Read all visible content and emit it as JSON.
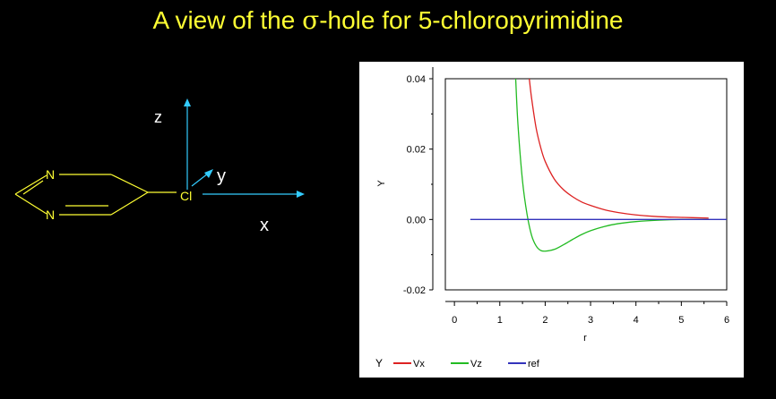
{
  "slide": {
    "title_prefix": "A view of the ",
    "title_sigma": "σ",
    "title_suffix": "-hole for 5-chloropyrimidine"
  },
  "molecule": {
    "atom_n1": "N",
    "atom_n2": "N",
    "atom_cl": "Cl",
    "axis_z": "z",
    "axis_y": "y",
    "axis_x": "x",
    "ring_color": "#ffff33",
    "axis_color": "#33ccff"
  },
  "chart_data": {
    "type": "line",
    "title": "",
    "xlabel": "r",
    "ylabel": "Y",
    "xlim": [
      -0.2,
      6.0
    ],
    "ylim": [
      -0.02,
      0.04
    ],
    "x_ticks": [
      0,
      1,
      2,
      3,
      4,
      5,
      6
    ],
    "y_ticks": [
      -0.02,
      0.0,
      0.02,
      0.04
    ],
    "y_tick_labels": [
      "-0.02",
      "0.00",
      "0.02",
      "0.04"
    ],
    "legend_title": "Y",
    "legend_position": "bottom",
    "grid": false,
    "series": [
      {
        "name": "Vx",
        "color": "#dd2222",
        "x": [
          1.65,
          1.7,
          1.8,
          1.9,
          2.0,
          2.2,
          2.4,
          2.6,
          2.8,
          3.0,
          3.3,
          3.6,
          4.0,
          4.5,
          5.0,
          5.6
        ],
        "y": [
          0.04,
          0.0345,
          0.026,
          0.0205,
          0.0165,
          0.0115,
          0.0085,
          0.0065,
          0.005,
          0.004,
          0.0028,
          0.002,
          0.0013,
          0.0008,
          0.0006,
          0.0004
        ]
      },
      {
        "name": "Vz",
        "color": "#22bb22",
        "x": [
          1.35,
          1.4,
          1.5,
          1.6,
          1.7,
          1.8,
          1.9,
          2.0,
          2.2,
          2.4,
          2.6,
          2.8,
          3.0,
          3.3,
          3.6,
          4.0,
          4.5,
          5.0,
          5.6
        ],
        "y": [
          0.04,
          0.027,
          0.011,
          0.0015,
          -0.0045,
          -0.0075,
          -0.0088,
          -0.009,
          -0.0085,
          -0.0072,
          -0.0057,
          -0.0043,
          -0.0032,
          -0.002,
          -0.0012,
          -0.0006,
          -0.0002,
          0.0,
          0.0
        ]
      },
      {
        "name": "ref",
        "color": "#3333bb",
        "x": [
          0.35,
          6.0
        ],
        "y": [
          0.0,
          0.0
        ]
      }
    ]
  }
}
